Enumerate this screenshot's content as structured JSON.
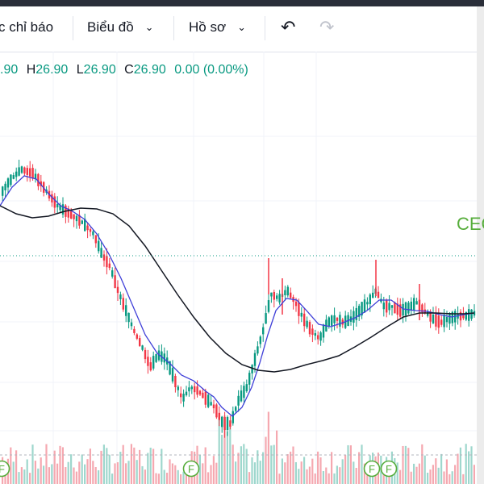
{
  "toolbar": {
    "indicators_label": "c chỉ báo",
    "chart_label": "Biểu đồ",
    "profile_label": "Hồ sơ",
    "chevron": "⌄",
    "undo_icon": "↶",
    "redo_icon": "↷"
  },
  "legend": {
    "open_val": ".90",
    "high_key": "H",
    "high_val": "26.90",
    "low_key": "L",
    "low_val": "26.90",
    "close_key": "C",
    "close_val": "26.90",
    "change": "0.00 (0.00%)"
  },
  "chart": {
    "symbol_partial": "CEC",
    "event_marker": "F",
    "colors": {
      "up": "#089981",
      "down": "#f23645",
      "up_volume": "#9ed7cd",
      "down_volume": "#f5a8b0",
      "ma_fast": "#3f3fd8",
      "ma_slow": "#131722",
      "price_line": "#089981",
      "marker": "#56ad3b"
    }
  }
}
